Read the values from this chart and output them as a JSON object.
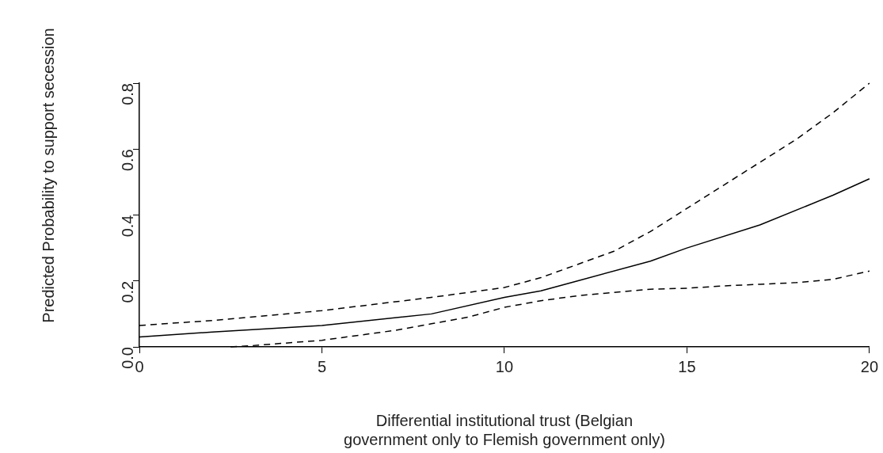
{
  "chart_data": {
    "type": "line",
    "xlabel": "Differential institutional trust (Belgian government only to Flemish government only)",
    "ylabel": "Predicted Probability to support secession",
    "marker": "none",
    "xlim": [
      0,
      20
    ],
    "ylim": [
      0,
      0.8
    ],
    "xticks": [
      0,
      5,
      10,
      15,
      20
    ],
    "yticks": [
      {
        "value": 0,
        "label": "0.0"
      },
      {
        "value": 0.2,
        "label": "0.2"
      },
      {
        "value": 0.4,
        "label": "0.4"
      },
      {
        "value": 0.6,
        "label": "0.6"
      },
      {
        "value": 0.8,
        "label": "0.8"
      }
    ],
    "series": [
      {
        "color": "#000000",
        "line_style": "solid",
        "x": [
          0,
          2,
          5,
          8,
          10,
          11,
          12,
          14,
          15,
          17,
          19,
          20
        ],
        "values": [
          0.03,
          0.045,
          0.065,
          0.1,
          0.15,
          0.17,
          0.2,
          0.26,
          0.3,
          0.37,
          0.46,
          0.51
        ]
      },
      {
        "color": "#000000",
        "line_style": "dashed",
        "x": [
          2.5,
          3,
          5,
          7,
          8,
          9,
          10,
          11,
          12,
          13,
          14,
          15,
          16,
          17,
          18,
          19,
          20
        ],
        "values": [
          0,
          0.003,
          0.02,
          0.05,
          0.07,
          0.09,
          0.12,
          0.14,
          0.155,
          0.165,
          0.175,
          0.178,
          0.185,
          0.19,
          0.195,
          0.205,
          0.23
        ]
      },
      {
        "color": "#000000",
        "line_style": "dashed",
        "x": [
          0,
          2,
          3,
          5,
          8,
          10,
          11,
          12,
          13,
          14,
          15,
          16,
          17,
          18,
          19,
          20
        ],
        "values": [
          0.065,
          0.08,
          0.09,
          0.11,
          0.15,
          0.18,
          0.21,
          0.25,
          0.29,
          0.35,
          0.42,
          0.49,
          0.56,
          0.63,
          0.71,
          0.8
        ]
      }
    ]
  }
}
